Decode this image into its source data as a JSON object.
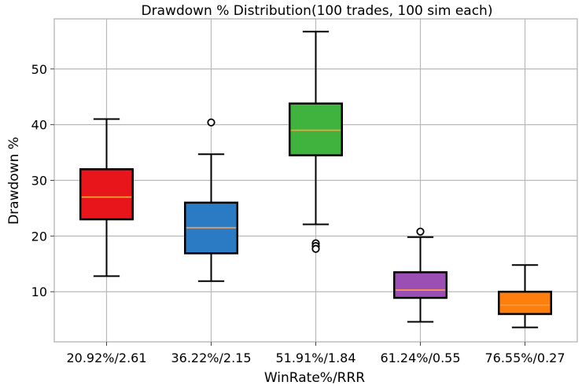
{
  "chart_data": {
    "type": "boxplot",
    "title": "Drawdown % Distribution(100 trades, 100 sim each)",
    "xlabel": "WinRate%/RRR",
    "ylabel": "Drawdown %",
    "ylim": [
      1,
      59
    ],
    "yticks": [
      10,
      20,
      30,
      40,
      50
    ],
    "grid": true,
    "categories": [
      "20.92%/2.61",
      "36.22%/2.15",
      "51.91%/1.84",
      "61.24%/0.55",
      "76.55%/0.27"
    ],
    "boxes": [
      {
        "name": "20.92%/2.61",
        "whisker_low": 12.8,
        "q1": 23.0,
        "median": 27.0,
        "q3": 32.0,
        "whisker_high": 41.0,
        "outliers": [],
        "color": "#e8151b"
      },
      {
        "name": "36.22%/2.15",
        "whisker_low": 11.9,
        "q1": 16.9,
        "median": 21.5,
        "q3": 26.0,
        "whisker_high": 34.7,
        "outliers": [
          40.4
        ],
        "color": "#2b7bc4"
      },
      {
        "name": "51.91%/1.84",
        "whisker_low": 22.1,
        "q1": 34.5,
        "median": 39.0,
        "q3": 43.8,
        "whisker_high": 56.7,
        "outliers": [
          18.7,
          18.2,
          17.7
        ],
        "color": "#40b33e"
      },
      {
        "name": "61.24%/0.55",
        "whisker_low": 4.6,
        "q1": 8.9,
        "median": 10.3,
        "q3": 13.5,
        "whisker_high": 19.8,
        "outliers": [
          20.8
        ],
        "color": "#9b4fb4"
      },
      {
        "name": "76.55%/0.27",
        "whisker_low": 3.6,
        "q1": 6.0,
        "median": 7.6,
        "q3": 10.0,
        "whisker_high": 14.8,
        "outliers": [],
        "color": "#ff7f0e"
      }
    ],
    "median_color": "#ff9b3a"
  }
}
